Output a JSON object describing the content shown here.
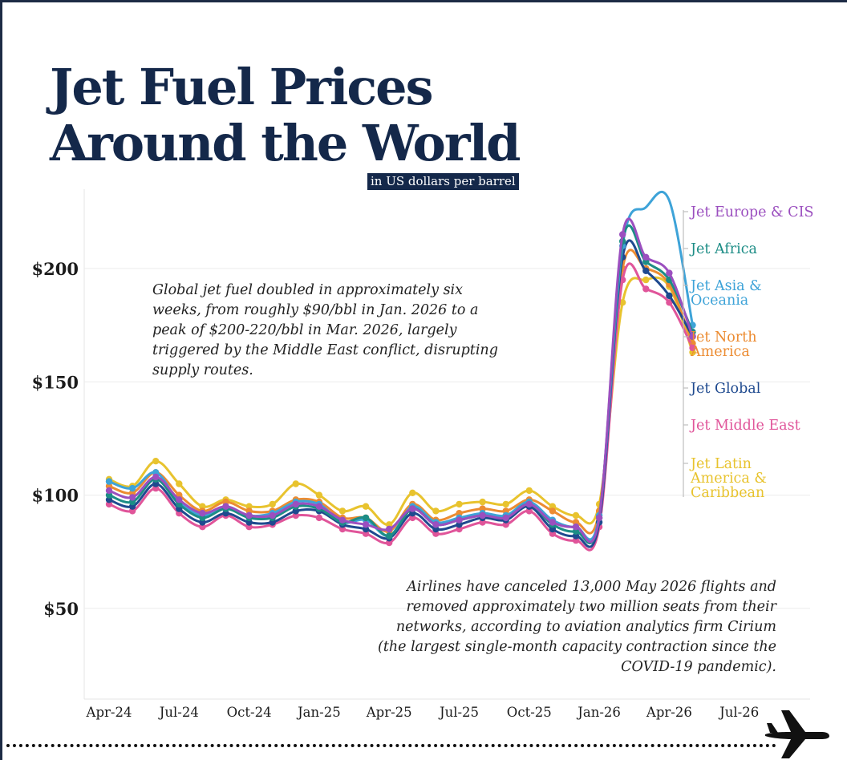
{
  "header": {
    "title_line1": "Jet Fuel Prices",
    "title_line2": "Around the World",
    "subtitle": "in US dollars per barrel"
  },
  "annotations": {
    "note1": "Global jet fuel doubled in approximately six weeks, from roughly $90/bbl in Jan. 2026 to a peak of $200-220/bbl in Mar. 2026, largely triggered by the Middle East conflict, disrupting supply routes.",
    "note2": "Airlines have canceled 13,000 May 2026 flights and removed approximately two million seats from their networks, according to aviation analytics firm Cirium (the largest single-month capacity contraction since the COVID-19 pandemic)."
  },
  "chart_data": {
    "type": "line",
    "title": "Jet Fuel Prices Around the World",
    "subtitle": "in US dollars per barrel",
    "xlabel": "",
    "ylabel": "",
    "ylim": [
      10,
      235
    ],
    "y_ticks": [
      50,
      100,
      150,
      200
    ],
    "y_tick_labels": [
      "$50",
      "$100",
      "$150",
      "$200"
    ],
    "grid": true,
    "legend": "right",
    "x_ticks": [
      "2024-04",
      "2024-07",
      "2024-10",
      "2025-01",
      "2025-04",
      "2025-07",
      "2025-10",
      "2026-01",
      "2026-04",
      "2026-07"
    ],
    "x_tick_labels": [
      "Apr-24",
      "Jul-24",
      "Oct-24",
      "Jan-25",
      "Apr-25",
      "Jul-25",
      "Oct-25",
      "Jan-26",
      "Apr-26",
      "Jul-26"
    ],
    "x": [
      "2024-04",
      "2024-05",
      "2024-06",
      "2024-07",
      "2024-08",
      "2024-09",
      "2024-10",
      "2024-11",
      "2024-12",
      "2025-01",
      "2025-02",
      "2025-03",
      "2025-04",
      "2025-05",
      "2025-06",
      "2025-07",
      "2025-08",
      "2025-09",
      "2025-10",
      "2025-11",
      "2025-12",
      "2026-01",
      "2026-02",
      "2026-03",
      "2026-04",
      "2026-05"
    ],
    "series": [
      {
        "name": "Jet Latin America & Caribbean",
        "color": "#e8c32e",
        "values": [
          107,
          104,
          115,
          105,
          95,
          98,
          95,
          96,
          105,
          100,
          93,
          95,
          87,
          101,
          93,
          96,
          97,
          96,
          102,
          95,
          91,
          96,
          185,
          195,
          192,
          163
        ]
      },
      {
        "name": "Jet North America",
        "color": "#ec8c32",
        "values": [
          104,
          101,
          110,
          100,
          93,
          97,
          93,
          93,
          98,
          97,
          90,
          90,
          84,
          96,
          89,
          92,
          94,
          93,
          98,
          93,
          88,
          93,
          200,
          200,
          193,
          167
        ]
      },
      {
        "name": "Jet Middle East",
        "color": "#e0559a",
        "values": [
          96,
          93,
          103,
          92,
          86,
          91,
          86,
          87,
          91,
          90,
          85,
          83,
          79,
          90,
          83,
          85,
          88,
          87,
          93,
          83,
          80,
          86,
          195,
          191,
          185,
          165
        ]
      },
      {
        "name": "Jet Global",
        "color": "#1f4a8f",
        "values": [
          98,
          95,
          105,
          94,
          88,
          92,
          88,
          88,
          93,
          93,
          87,
          85,
          81,
          92,
          85,
          87,
          90,
          89,
          95,
          85,
          82,
          88,
          205,
          199,
          188,
          170
        ]
      },
      {
        "name": "Jet Asia & Oceania",
        "color": "#3ea3d8",
        "values": [
          106,
          103,
          110,
          97,
          91,
          95,
          91,
          92,
          97,
          96,
          88,
          89,
          82,
          95,
          88,
          90,
          92,
          91,
          97,
          89,
          86,
          91,
          210,
          227,
          230,
          175
        ]
      },
      {
        "name": "Jet Africa",
        "color": "#1d8d86",
        "values": [
          100,
          97,
          107,
          96,
          90,
          94,
          90,
          90,
          95,
          94,
          88,
          90,
          82,
          94,
          87,
          89,
          91,
          90,
          96,
          87,
          84,
          90,
          212,
          203,
          195,
          172
        ]
      },
      {
        "name": "Jet Europe & CIS",
        "color": "#9b4fbf",
        "values": [
          102,
          99,
          108,
          98,
          92,
          95,
          91,
          91,
          96,
          95,
          89,
          87,
          85,
          94,
          87,
          89,
          91,
          90,
          96,
          88,
          86,
          90,
          215,
          205,
          198,
          170
        ]
      }
    ],
    "legend_labels": [
      {
        "text": "Jet Europe & CIS",
        "color": "#9b4fbf"
      },
      {
        "text": "Jet Africa",
        "color": "#1d8d86"
      },
      {
        "text": "Jet Asia & Oceania",
        "color": "#3ea3d8"
      },
      {
        "text": "Jet North America",
        "color": "#ec8c32"
      },
      {
        "text": "Jet Global",
        "color": "#1f4a8f"
      },
      {
        "text": "Jet Middle East",
        "color": "#e0559a"
      },
      {
        "text": "Jet Latin America & Caribbean",
        "color": "#e8c32e"
      }
    ]
  },
  "icons": {
    "plane": "airplane-icon"
  }
}
